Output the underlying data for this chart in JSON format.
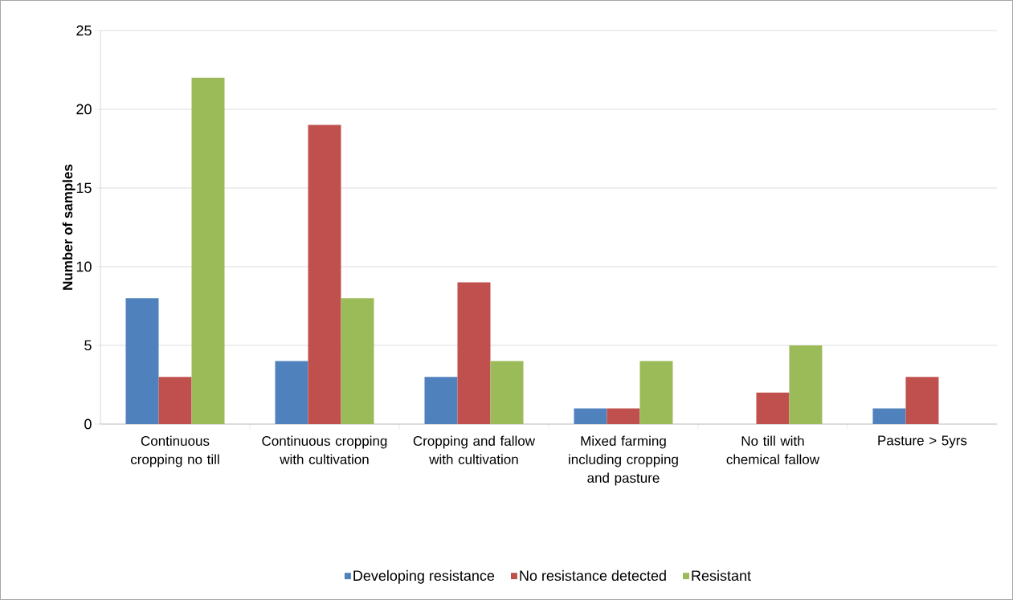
{
  "chart_data": {
    "type": "bar",
    "ylabel": "Number of samples",
    "categories": [
      "Continuous cropping no till",
      "Continuous cropping with cultivation",
      "Cropping and fallow with cultivation",
      "Mixed farming including cropping and pasture",
      "No till with chemical fallow",
      "Pasture > 5yrs"
    ],
    "series": [
      {
        "name": "Developing resistance",
        "color": "#4f81bd",
        "values": [
          8,
          4,
          3,
          1,
          0,
          1
        ]
      },
      {
        "name": "No resistance detected",
        "color": "#c0504d",
        "values": [
          3,
          19,
          9,
          1,
          2,
          3
        ]
      },
      {
        "name": "Resistant",
        "color": "#9bbb59",
        "values": [
          22,
          8,
          4,
          4,
          5,
          0
        ]
      }
    ],
    "ylim": [
      0,
      25
    ],
    "yticks": [
      0,
      5,
      10,
      15,
      20,
      25
    ],
    "grid": "y",
    "legend": "bottom"
  }
}
